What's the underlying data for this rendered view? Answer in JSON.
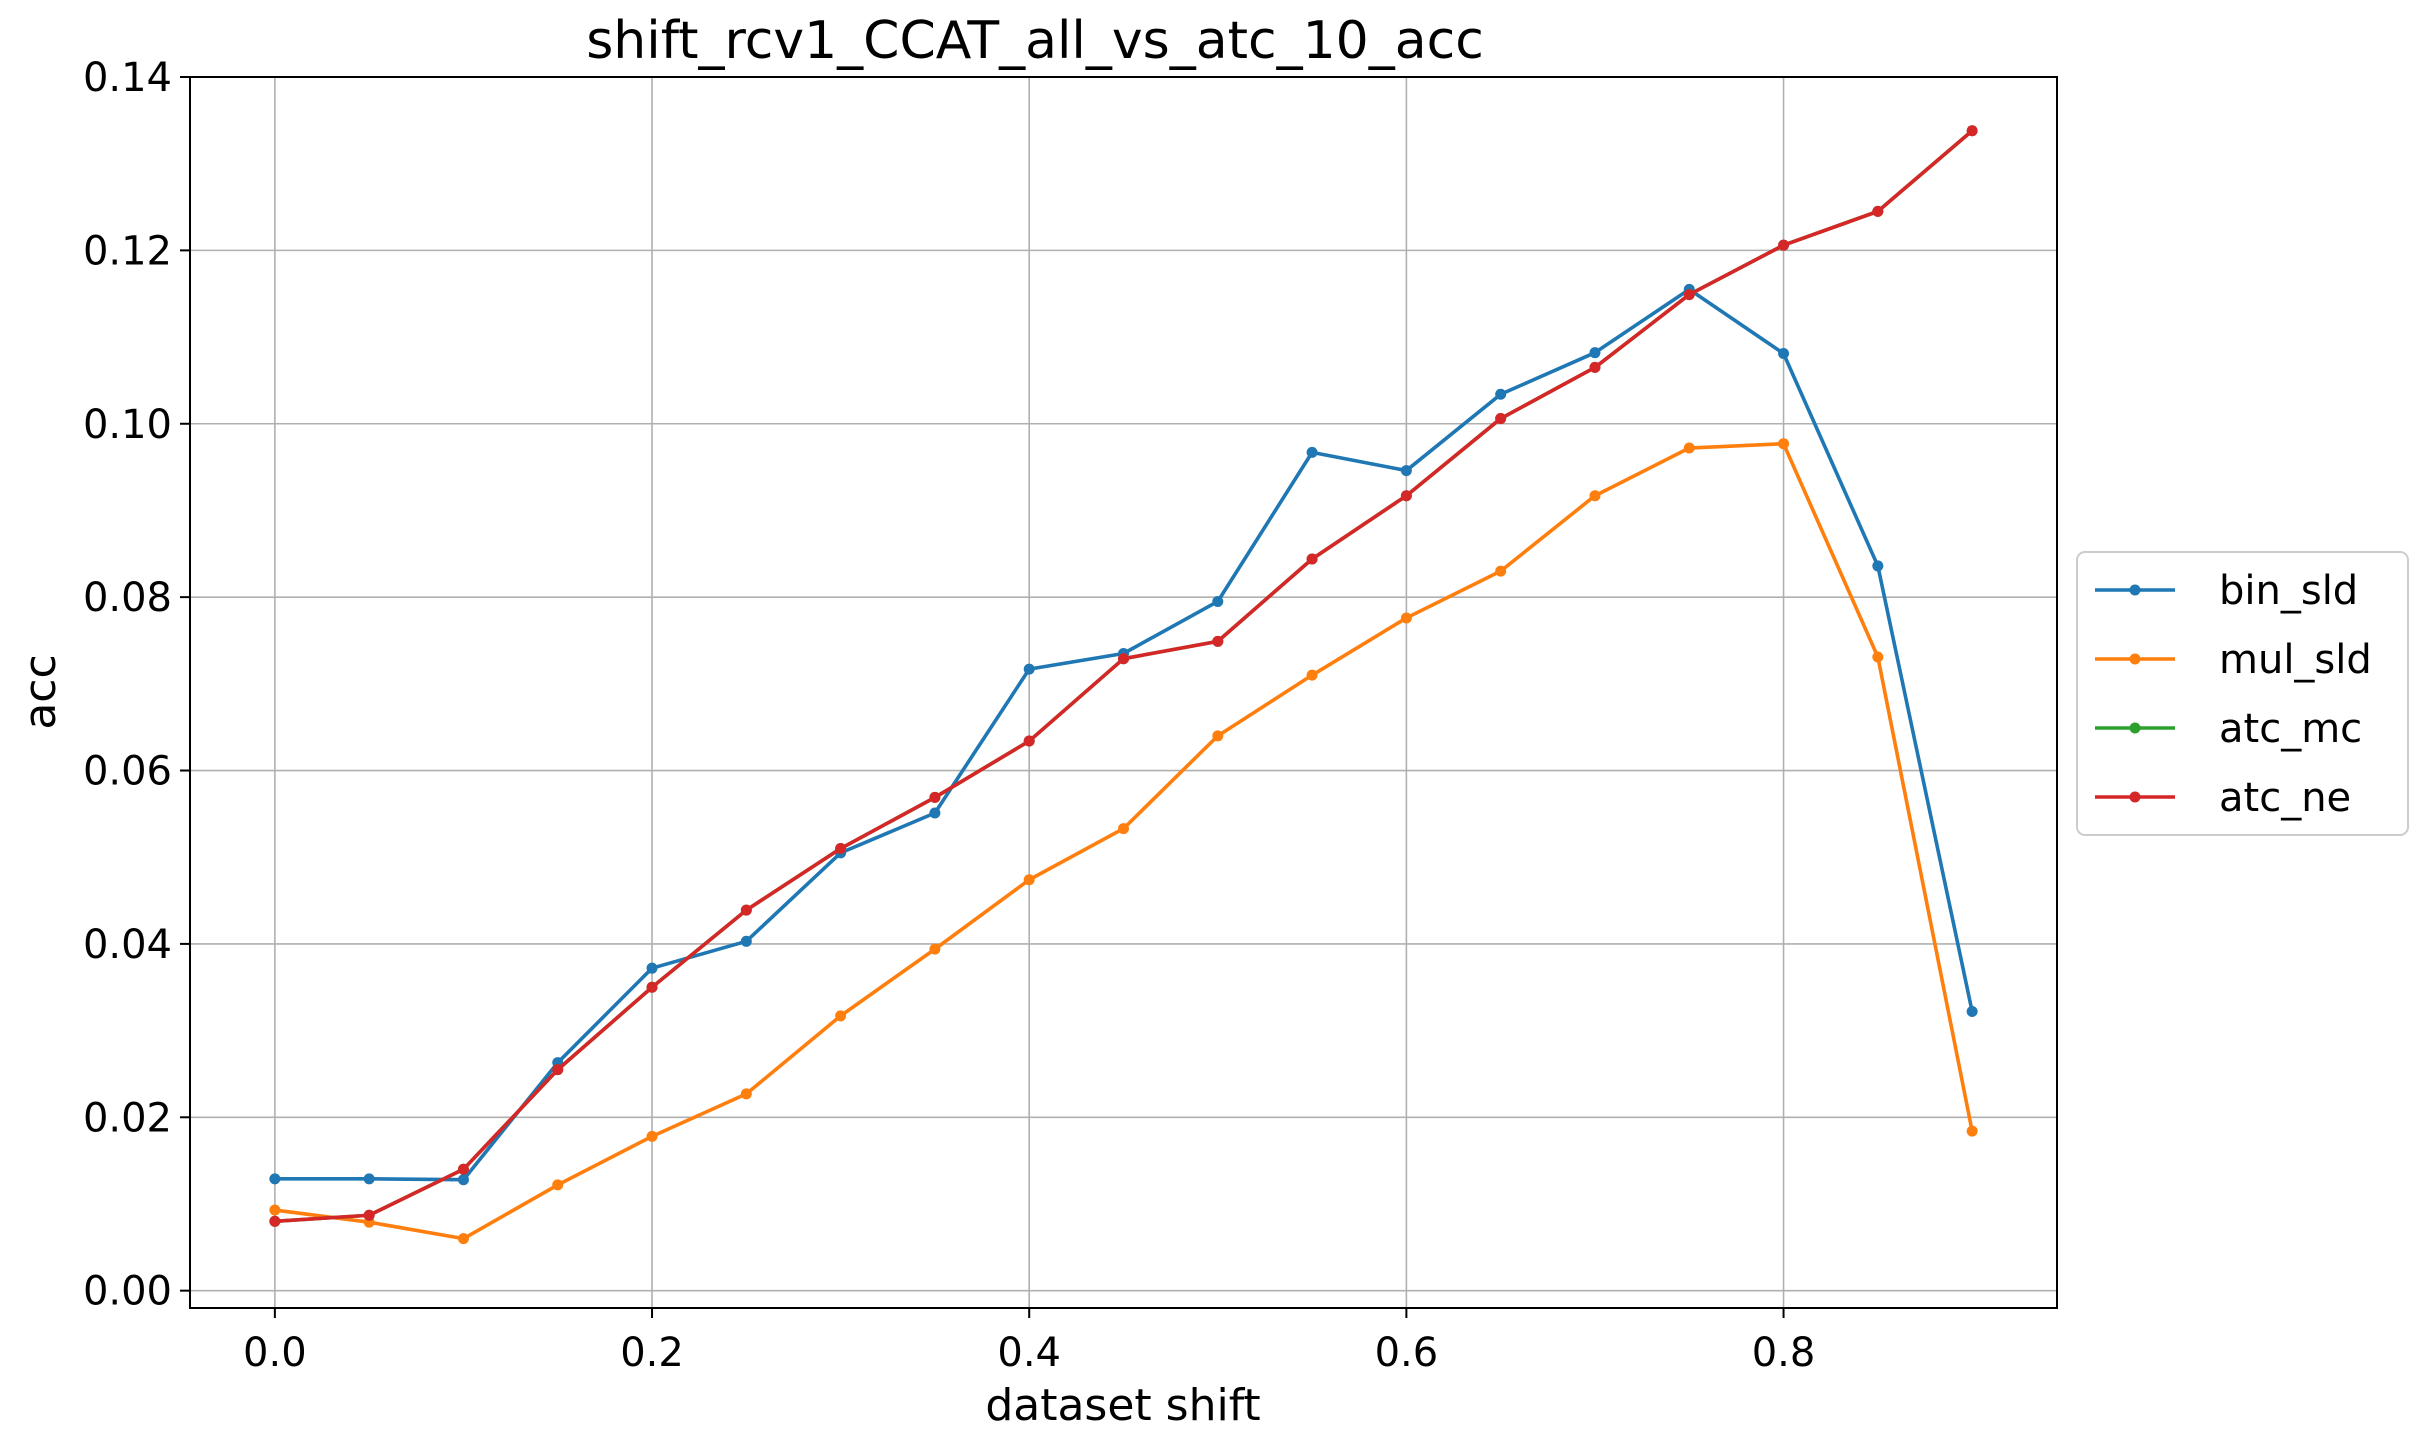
{
  "chart_data": {
    "type": "line",
    "title": "shift_rcv1_CCAT_all_vs_atc_10_acc",
    "xlabel": "dataset shift",
    "ylabel": "acc",
    "xlim": [
      -0.045,
      0.945
    ],
    "ylim": [
      -0.002,
      0.14
    ],
    "xticks": [
      0.0,
      0.2,
      0.4,
      0.6,
      0.8
    ],
    "xtick_labels": [
      "0.0",
      "0.2",
      "0.4",
      "0.6",
      "0.8"
    ],
    "yticks": [
      0.0,
      0.02,
      0.04,
      0.06,
      0.08,
      0.1,
      0.12,
      0.14
    ],
    "ytick_labels": [
      "0.00",
      "0.02",
      "0.04",
      "0.06",
      "0.08",
      "0.10",
      "0.12",
      "0.14"
    ],
    "grid": true,
    "legend_position": "outside right",
    "x": [
      0.0,
      0.05,
      0.1,
      0.15,
      0.2,
      0.25,
      0.3,
      0.35,
      0.4,
      0.45,
      0.5,
      0.55,
      0.6,
      0.65,
      0.7,
      0.75,
      0.8,
      0.85,
      0.9
    ],
    "series": [
      {
        "name": "bin_sld",
        "color": "#1f77b4",
        "values": [
          0.0129,
          0.0129,
          0.0128,
          0.0263,
          0.0372,
          0.0403,
          0.0505,
          0.0551,
          0.0717,
          0.0735,
          0.0795,
          0.0967,
          0.0946,
          0.1034,
          0.1082,
          0.1155,
          0.1081,
          0.0836,
          0.0322
        ]
      },
      {
        "name": "mul_sld",
        "color": "#ff7f0e",
        "values": [
          0.0093,
          0.0079,
          0.006,
          0.0122,
          0.0178,
          0.0227,
          0.0317,
          0.0394,
          0.0474,
          0.0533,
          0.064,
          0.071,
          0.0776,
          0.083,
          0.0917,
          0.0972,
          0.0977,
          0.0731,
          0.0184
        ]
      },
      {
        "name": "atc_mc",
        "color": "#2ca02c",
        "values": [
          0.008,
          0.0087,
          0.014,
          0.0255,
          0.035,
          0.0439,
          0.051,
          0.0569,
          0.0634,
          0.0729,
          0.0749,
          0.0844,
          0.0917,
          0.1006,
          0.1065,
          0.1149,
          0.1206,
          0.1245,
          0.1338
        ]
      },
      {
        "name": "atc_ne",
        "color": "#d62728",
        "values": [
          0.008,
          0.0087,
          0.014,
          0.0255,
          0.035,
          0.0439,
          0.051,
          0.0569,
          0.0634,
          0.0729,
          0.0749,
          0.0844,
          0.0917,
          0.1006,
          0.1065,
          0.1149,
          0.1206,
          0.1245,
          0.1338
        ]
      }
    ],
    "grid_color": "#b0b0b0"
  }
}
